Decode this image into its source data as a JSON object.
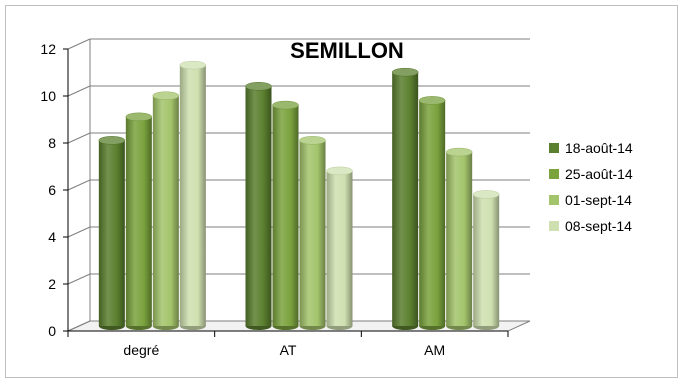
{
  "chart_data": {
    "type": "bar",
    "style": "3d-cylinder",
    "title": "SEMILLON",
    "xlabel": "",
    "ylabel": "",
    "categories": [
      "degré",
      "AT",
      "AM"
    ],
    "ylim": [
      0,
      12
    ],
    "yticks": [
      0,
      2,
      4,
      6,
      8,
      10,
      12
    ],
    "grid": true,
    "legend_position": "right",
    "series": [
      {
        "name": "18-août-14",
        "color": "#5a7f2e",
        "values": [
          7.9,
          10.2,
          10.8
        ]
      },
      {
        "name": "25-août-14",
        "color": "#7aa23d",
        "values": [
          8.9,
          9.4,
          9.6
        ]
      },
      {
        "name": "01-sept-14",
        "color": "#a3c46b",
        "values": [
          9.8,
          7.9,
          7.4
        ]
      },
      {
        "name": "08-sept-14",
        "color": "#cfe0b0",
        "values": [
          11.1,
          6.6,
          5.6
        ]
      }
    ]
  }
}
